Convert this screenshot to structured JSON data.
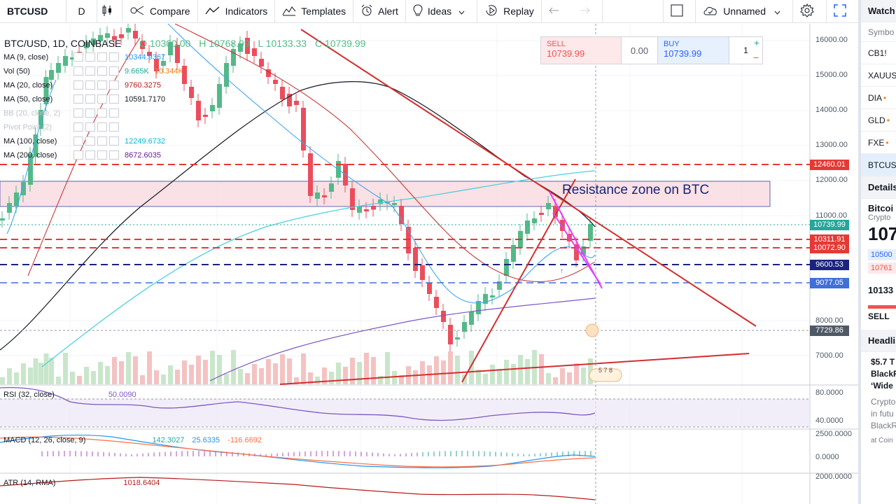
{
  "toolbar": {
    "symbol": "BTCUSD",
    "interval": "D",
    "compare": "Compare",
    "indicators": "Indicators",
    "templates": "Templates",
    "alert": "Alert",
    "ideas": "Ideas",
    "replay": "Replay",
    "layout_name": "Unnamed"
  },
  "side_panel": {
    "header": "Watch",
    "column": "Symbo",
    "symbols": [
      "CB1!",
      "XAUUS",
      "DIA",
      "GLD",
      "FXE",
      "BTCUS"
    ],
    "details_header": "Details",
    "detail_name": "Bitcoi",
    "detail_type": "Crypto",
    "detail_price": "107",
    "detail_bid": "10500",
    "detail_ask": "10761",
    "detail_low": "10133",
    "sell_label": "SELL",
    "headlines_header": "Headli",
    "headline_1": "$5.7 T",
    "headline_2": "BlackR",
    "headline_3": "‘Wide",
    "headline_4": "Crypto",
    "headline_5": "in futu",
    "headline_6": "BlackR",
    "headline_7": "at Coin"
  },
  "legend": {
    "title": "BTC/USD, 1D, COINBASE",
    "open": "O 10300.00",
    "high": "H 10768.99",
    "low": "L 10133.33",
    "close": "C 10739.99",
    "indicators": [
      {
        "name": "MA (9, close)",
        "values": [
          "10344.9367"
        ],
        "color": "#2196f3"
      },
      {
        "name": "Vol (50)",
        "values": [
          "9.665K",
          "10.344K"
        ],
        "color": "#26a69a"
      },
      {
        "name": "MA (20, close)",
        "values": [
          "9760.3275"
        ],
        "color": "#b71c1c"
      },
      {
        "name": "MA (50, close)",
        "values": [
          "10591.7170"
        ],
        "color": "#131722"
      },
      {
        "name": "BB (20, close, 2)",
        "values": [],
        "color": "#9598a1"
      },
      {
        "name": "Pivot Point (2)",
        "values": [],
        "color": "#9598a1"
      },
      {
        "name": "MA (100, close)",
        "values": [
          "12249.6732"
        ],
        "color": "#00bcd4"
      },
      {
        "name": "MA (200, close)",
        "values": [
          "8672.6035"
        ],
        "color": "#6a1b9a"
      }
    ]
  },
  "trade": {
    "sell_label": "SELL",
    "sell_price": "10739.99",
    "spread": "0.00",
    "buy_label": "BUY",
    "buy_price": "10739.99",
    "qty": "1"
  },
  "annotation": "Resistance zone on BTC",
  "price_axis": [
    "16000.00",
    "15000.00",
    "14000.00",
    "13000.00",
    "12000.00",
    "11000.00",
    "8000.00",
    "7000.00"
  ],
  "price_labels": [
    {
      "text": "12460.01",
      "color": "#e53935"
    },
    {
      "text": "10739.99",
      "color": "#26a69a"
    },
    {
      "text": "10311.91",
      "color": "#e53935"
    },
    {
      "text": "10072.90",
      "color": "#e53935"
    },
    {
      "text": "9600.53",
      "color": "#1a237e"
    },
    {
      "text": "9077.05",
      "color": "#3f6fd8"
    },
    {
      "text": "7729.86",
      "color": "#4f5966"
    }
  ],
  "panes": {
    "rsi": {
      "label": "RSI (32, close)",
      "value": "50.0090",
      "axis": [
        "80.0000",
        "40.0000"
      ]
    },
    "macd": {
      "label": "MACD (12, 26, close, 9)",
      "values": [
        "142.3027",
        "25.6335",
        "-116.6692"
      ],
      "axis": [
        "2500.0000",
        "0.0000"
      ]
    },
    "atr": {
      "label": "ATR (14, RMA)",
      "value": "1018.6404",
      "axis": [
        "2000.0000"
      ]
    }
  },
  "bar_marker": "5 7 8",
  "colors": {
    "up": "#53b987",
    "down": "#eb4d5c",
    "accent": "#2962ff"
  }
}
